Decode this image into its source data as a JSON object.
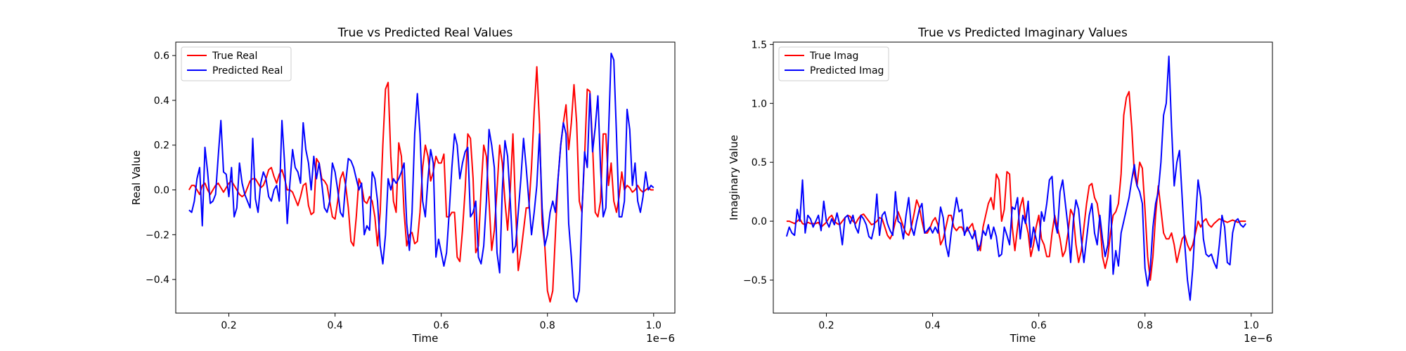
{
  "chart_data": [
    {
      "type": "line",
      "title": "True vs Predicted Real Values",
      "xlabel": "Time",
      "ylabel": "Real Value",
      "x_offset_text": "1e−6",
      "xlim": [
        0.1,
        1.04
      ],
      "ylim": [
        -0.55,
        0.66
      ],
      "xticks": [
        0.2,
        0.4,
        0.6,
        0.8,
        1.0
      ],
      "xtick_labels": [
        "0.2",
        "0.4",
        "0.6",
        "0.8",
        "1.0"
      ],
      "yticks": [
        -0.4,
        -0.2,
        0.0,
        0.2,
        0.4,
        0.6
      ],
      "ytick_labels": [
        "−0.4",
        "−0.2",
        "0.0",
        "0.2",
        "0.4",
        "0.6"
      ],
      "legend_position": "top-left",
      "x": {
        "start": 0.125,
        "end": 1.0,
        "count": 176
      },
      "series": [
        {
          "name": "True Real",
          "color": "#ff0000",
          "values": [
            0.0,
            0.02,
            0.02,
            0.0,
            -0.02,
            0.02,
            0.03,
            0.0,
            -0.02,
            0.0,
            0.02,
            0.03,
            0.01,
            -0.01,
            0.01,
            0.03,
            0.04,
            0.02,
            0.0,
            -0.02,
            -0.03,
            -0.02,
            0.01,
            0.04,
            0.05,
            0.05,
            0.03,
            0.01,
            0.02,
            0.05,
            0.09,
            0.1,
            0.06,
            0.03,
            0.07,
            0.09,
            0.05,
            0.0,
            0.0,
            -0.01,
            -0.04,
            -0.07,
            -0.03,
            0.02,
            0.03,
            -0.07,
            -0.11,
            -0.1,
            0.14,
            0.12,
            0.05,
            0.04,
            0.02,
            -0.05,
            -0.12,
            -0.13,
            -0.05,
            0.05,
            0.08,
            0.02,
            -0.08,
            -0.23,
            -0.25,
            -0.12,
            0.05,
            0.02,
            -0.05,
            -0.06,
            -0.03,
            -0.05,
            -0.12,
            -0.25,
            -0.1,
            0.2,
            0.45,
            0.48,
            0.15,
            -0.05,
            -0.1,
            0.21,
            0.15,
            -0.1,
            -0.25,
            -0.2,
            -0.19,
            -0.24,
            -0.23,
            -0.1,
            0.1,
            0.2,
            0.15,
            0.04,
            0.08,
            0.15,
            0.12,
            0.12,
            0.16,
            -0.12,
            -0.12,
            -0.1,
            -0.1,
            -0.3,
            -0.32,
            -0.18,
            0.0,
            0.25,
            0.23,
            0.05,
            -0.28,
            -0.25,
            0.0,
            0.2,
            0.15,
            -0.05,
            -0.27,
            -0.18,
            0.0,
            0.2,
            0.12,
            -0.05,
            -0.18,
            0.0,
            0.25,
            -0.08,
            -0.36,
            -0.28,
            -0.18,
            -0.08,
            -0.08,
            0.1,
            0.35,
            0.55,
            0.3,
            -0.15,
            -0.25,
            -0.45,
            -0.5,
            -0.45,
            -0.2,
            0.05,
            0.2,
            0.3,
            0.38,
            0.18,
            0.3,
            0.47,
            0.3,
            -0.05,
            -0.1,
            0.15,
            0.45,
            0.44,
            0.2,
            -0.1,
            -0.12,
            -0.05,
            0.25,
            0.25,
            0.02,
            0.12,
            -0.05,
            -0.1,
            -0.03,
            0.08,
            0.0,
            0.02,
            0.01,
            -0.01,
            0.0,
            0.02,
            0.0,
            -0.01,
            0.0,
            0.01,
            0.0,
            0.0
          ],
          "n_drawn": 176
        },
        {
          "name": "Predicted Real",
          "color": "#0000ff",
          "values": [
            -0.09,
            -0.1,
            -0.05,
            0.05,
            0.1,
            -0.16,
            0.19,
            0.08,
            -0.06,
            -0.05,
            -0.02,
            0.15,
            0.31,
            0.08,
            0.07,
            -0.03,
            0.1,
            -0.12,
            -0.08,
            0.12,
            0.03,
            -0.02,
            -0.05,
            -0.08,
            0.23,
            -0.04,
            -0.1,
            0.03,
            0.08,
            0.05,
            -0.03,
            -0.05,
            0.0,
            0.02,
            -0.05,
            0.31,
            0.12,
            -0.15,
            0.03,
            0.18,
            0.1,
            0.08,
            0.03,
            0.3,
            0.18,
            0.12,
            0.0,
            0.15,
            0.05,
            0.12,
            0.03,
            -0.08,
            -0.1,
            -0.05,
            0.12,
            0.08,
            0.0,
            -0.1,
            -0.12,
            0.03,
            0.14,
            0.13,
            0.1,
            0.05,
            0.0,
            0.03,
            -0.2,
            -0.16,
            -0.18,
            0.08,
            0.05,
            -0.05,
            -0.25,
            -0.33,
            -0.2,
            0.05,
            0.0,
            0.05,
            0.03,
            0.05,
            0.08,
            0.12,
            -0.15,
            -0.27,
            -0.1,
            0.25,
            0.43,
            0.25,
            -0.05,
            -0.12,
            0.05,
            0.18,
            0.12,
            -0.3,
            -0.22,
            -0.28,
            -0.34,
            -0.28,
            -0.1,
            0.1,
            0.25,
            0.2,
            0.05,
            0.12,
            0.17,
            0.19,
            -0.12,
            -0.1,
            -0.05,
            -0.3,
            -0.33,
            -0.25,
            -0.05,
            0.27,
            0.2,
            0.1,
            -0.28,
            -0.37,
            0.0,
            0.22,
            0.15,
            -0.05,
            -0.28,
            -0.25,
            -0.1,
            0.05,
            0.23,
            0.1,
            -0.05,
            -0.2,
            -0.1,
            0.02,
            0.25,
            -0.08,
            -0.25,
            -0.2,
            -0.1,
            -0.05,
            -0.1,
            0.05,
            0.2,
            0.3,
            0.25,
            -0.15,
            -0.3,
            -0.48,
            -0.5,
            -0.45,
            -0.1,
            0.17,
            0.1,
            0.43,
            0.17,
            0.28,
            0.42,
            0.1,
            -0.12,
            -0.08,
            0.25,
            0.61,
            0.58,
            0.25,
            -0.12,
            -0.12,
            -0.05,
            0.36,
            0.27,
            0.02,
            0.12,
            -0.05,
            -0.1,
            -0.03,
            0.08,
            0.0,
            0.02,
            0.01
          ],
          "n_drawn": 176
        }
      ]
    },
    {
      "type": "line",
      "title": "True vs Predicted Imaginary Values",
      "xlabel": "Time",
      "ylabel": "Imaginary Value",
      "x_offset_text": "1e−6",
      "xlim": [
        0.1,
        1.04
      ],
      "ylim": [
        -0.78,
        1.52
      ],
      "xticks": [
        0.2,
        0.4,
        0.6,
        0.8,
        1.0
      ],
      "xtick_labels": [
        "0.2",
        "0.4",
        "0.6",
        "0.8",
        "1.0"
      ],
      "yticks": [
        -0.5,
        0.0,
        0.5,
        1.0,
        1.5
      ],
      "ytick_labels": [
        "−0.5",
        "0.0",
        "0.5",
        "1.0",
        "1.5"
      ],
      "legend_position": "top-left",
      "x": {
        "start": 0.125,
        "end": 1.0,
        "count": 176
      },
      "series": [
        {
          "name": "True Imag",
          "color": "#ff0000",
          "values": [
            0.0,
            0.0,
            -0.01,
            -0.02,
            0.0,
            0.02,
            -0.02,
            -0.03,
            -0.01,
            -0.02,
            -0.02,
            -0.02,
            -0.01,
            -0.05,
            -0.03,
            -0.01,
            0.03,
            0.05,
            0.0,
            -0.02,
            -0.03,
            0.0,
            0.03,
            0.05,
            0.04,
            0.0,
            -0.02,
            0.02,
            0.05,
            0.06,
            0.03,
            0.0,
            -0.03,
            -0.02,
            0.0,
            0.03,
            0.02,
            -0.05,
            -0.12,
            -0.15,
            -0.1,
            0.0,
            0.08,
            0.02,
            -0.05,
            -0.1,
            -0.12,
            -0.05,
            0.06,
            0.18,
            0.12,
            0.0,
            -0.1,
            -0.1,
            -0.06,
            0.0,
            0.03,
            -0.03,
            -0.2,
            -0.15,
            -0.05,
            0.05,
            0.05,
            -0.05,
            -0.08,
            -0.05,
            -0.05,
            -0.1,
            -0.08,
            -0.05,
            -0.02,
            -0.12,
            -0.2,
            -0.25,
            -0.05,
            0.05,
            0.15,
            0.2,
            0.1,
            0.4,
            0.35,
            0.0,
            0.1,
            0.42,
            0.4,
            -0.05,
            -0.25,
            -0.05,
            0.12,
            0.2,
            0.0,
            -0.1,
            -0.3,
            -0.2,
            -0.05,
            0.05,
            -0.15,
            -0.2,
            -0.3,
            -0.3,
            -0.1,
            0.05,
            -0.05,
            -0.15,
            -0.3,
            -0.25,
            -0.1,
            0.1,
            0.05,
            -0.2,
            -0.35,
            -0.25,
            -0.05,
            0.15,
            0.3,
            0.32,
            0.2,
            0.15,
            0.0,
            -0.3,
            -0.4,
            -0.3,
            -0.1,
            0.05,
            0.08,
            0.15,
            0.4,
            0.9,
            1.05,
            1.1,
            0.8,
            0.4,
            0.3,
            0.5,
            0.45,
            0.1,
            -0.3,
            -0.5,
            -0.3,
            0.05,
            0.3,
            0.1,
            -0.1,
            -0.15,
            -0.15,
            -0.1,
            -0.2,
            -0.35,
            -0.25,
            -0.15,
            -0.12,
            -0.2,
            -0.25,
            -0.2,
            -0.1,
            0.0,
            -0.05,
            0.0,
            0.02,
            -0.03,
            -0.05,
            -0.02,
            0.0,
            0.02,
            0.01,
            0.0,
            -0.01,
            0.0,
            0.01,
            0.0,
            -0.01,
            0.0,
            0.0,
            0.0
          ],
          "n_drawn": 176
        },
        {
          "name": "Predicted Imag",
          "color": "#0000ff",
          "values": [
            -0.13,
            -0.05,
            -0.1,
            -0.12,
            0.1,
            0.0,
            0.35,
            -0.1,
            0.05,
            0.02,
            -0.05,
            0.0,
            0.05,
            -0.08,
            0.17,
            0.0,
            -0.05,
            0.02,
            -0.03,
            0.07,
            -0.03,
            -0.2,
            0.03,
            0.05,
            -0.02,
            0.05,
            -0.05,
            -0.1,
            0.05,
            0.02,
            -0.03,
            -0.13,
            -0.15,
            -0.05,
            0.23,
            -0.12,
            0.05,
            0.08,
            -0.02,
            -0.08,
            -0.12,
            0.25,
            0.0,
            -0.02,
            -0.15,
            0.05,
            0.2,
            -0.05,
            -0.12,
            0.0,
            0.1,
            0.15,
            -0.1,
            -0.08,
            -0.05,
            -0.1,
            -0.05,
            -0.1,
            0.12,
            0.03,
            -0.2,
            -0.3,
            -0.1,
            0.05,
            0.2,
            0.08,
            0.1,
            -0.12,
            -0.05,
            -0.1,
            -0.15,
            -0.08,
            -0.25,
            -0.2,
            -0.08,
            -0.12,
            -0.03,
            -0.15,
            -0.05,
            -0.13,
            -0.3,
            -0.28,
            -0.05,
            -0.12,
            -0.2,
            0.12,
            0.1,
            0.2,
            -0.15,
            0.05,
            -0.02,
            0.17,
            -0.22,
            -0.05,
            -0.15,
            -0.25,
            0.08,
            0.0,
            0.15,
            0.35,
            0.38,
            0.0,
            -0.1,
            0.25,
            0.35,
            0.15,
            -0.05,
            -0.35,
            0.0,
            0.18,
            0.1,
            -0.15,
            -0.35,
            -0.15,
            0.05,
            0.15,
            -0.1,
            -0.2,
            0.05,
            -0.15,
            -0.3,
            -0.2,
            0.22,
            -0.45,
            -0.25,
            -0.38,
            -0.1,
            0.0,
            0.1,
            0.2,
            0.35,
            0.48,
            0.3,
            0.25,
            0.15,
            -0.4,
            -0.55,
            -0.4,
            -0.05,
            0.15,
            0.25,
            0.5,
            0.9,
            1.0,
            1.4,
            0.8,
            0.3,
            0.5,
            0.6,
            0.2,
            -0.2,
            -0.5,
            -0.67,
            -0.4,
            0.0,
            0.35,
            0.2,
            -0.15,
            -0.28,
            -0.3,
            -0.28,
            -0.35,
            -0.4,
            -0.2,
            0.05,
            -0.05,
            -0.35,
            -0.37,
            -0.1,
            0.0,
            0.02,
            -0.03,
            -0.05,
            -0.02
          ],
          "n_drawn": 176
        }
      ]
    }
  ]
}
